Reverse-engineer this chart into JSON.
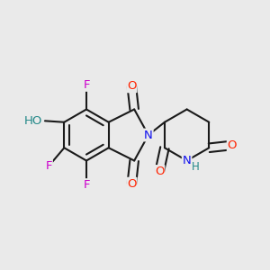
{
  "bg_color": "#eaeaea",
  "bond_color": "#1a1a1a",
  "bond_width": 1.5,
  "atom_colors": {
    "O": "#ff2200",
    "N": "#1010ee",
    "F": "#cc00cc",
    "HO": "#228888",
    "H": "#228888"
  },
  "font_size": 9.5
}
